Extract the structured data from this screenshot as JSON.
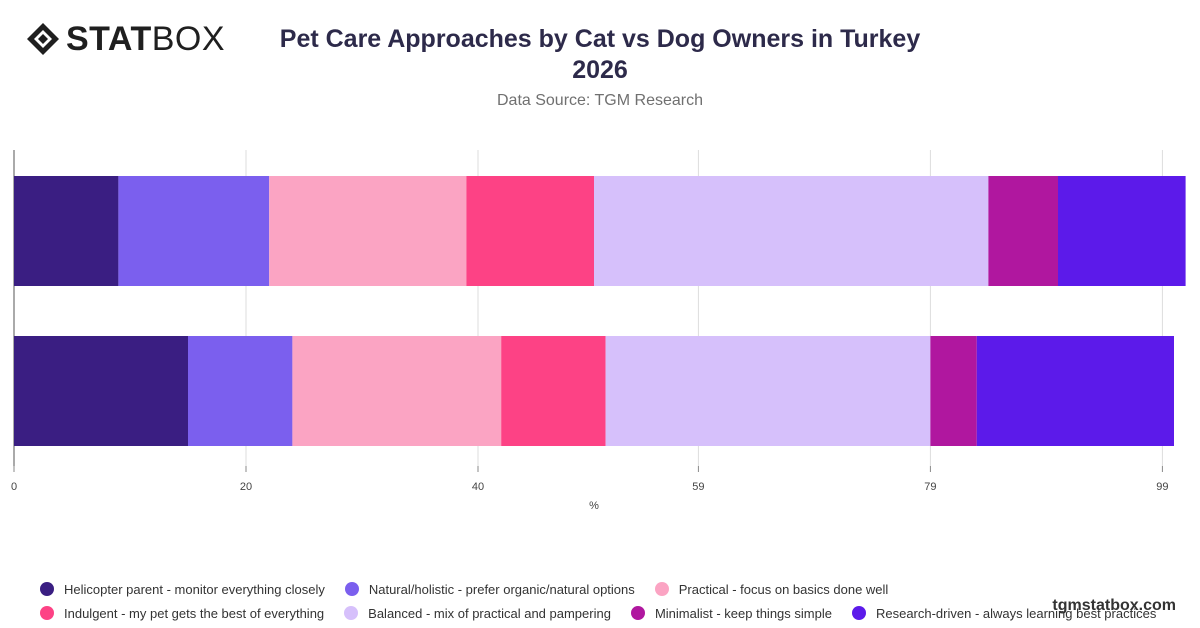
{
  "brand": {
    "logo_bold": "STAT",
    "logo_light": "BOX",
    "site": "tgmstatbox.com"
  },
  "title_line1": "Pet Care Approaches by Cat vs Dog Owners in Turkey",
  "title_line2": "2026",
  "source": "Data Source: TGM Research",
  "chart_data": {
    "type": "bar",
    "orientation": "horizontal",
    "stacked": true,
    "xlabel": "%",
    "xticks": [
      "0",
      "20",
      "40",
      "59",
      "79",
      "99"
    ],
    "xlim": [
      0,
      100
    ],
    "grid": true,
    "legend_position": "bottom",
    "categories": [
      "",
      ""
    ],
    "series": [
      {
        "name": "Helicopter parent - monitor everything closely",
        "color": "#3a1e82",
        "values": [
          9,
          15
        ]
      },
      {
        "name": "Natural/holistic - prefer organic/natural options",
        "color": "#7b5fee",
        "values": [
          13,
          9
        ]
      },
      {
        "name": "Practical - focus on basics done well",
        "color": "#fba4c3",
        "values": [
          17,
          18
        ]
      },
      {
        "name": "Indulgent - my pet gets the best of everything",
        "color": "#fd4285",
        "values": [
          11,
          9
        ]
      },
      {
        "name": "Balanced - mix of practical and pampering",
        "color": "#d6c0fb",
        "values": [
          34,
          28
        ]
      },
      {
        "name": "Minimalist - keep things simple",
        "color": "#b0179f",
        "values": [
          6,
          4
        ]
      },
      {
        "name": "Research-driven - always learning best practices",
        "color": "#5c1aea",
        "values": [
          11,
          17
        ]
      }
    ]
  }
}
